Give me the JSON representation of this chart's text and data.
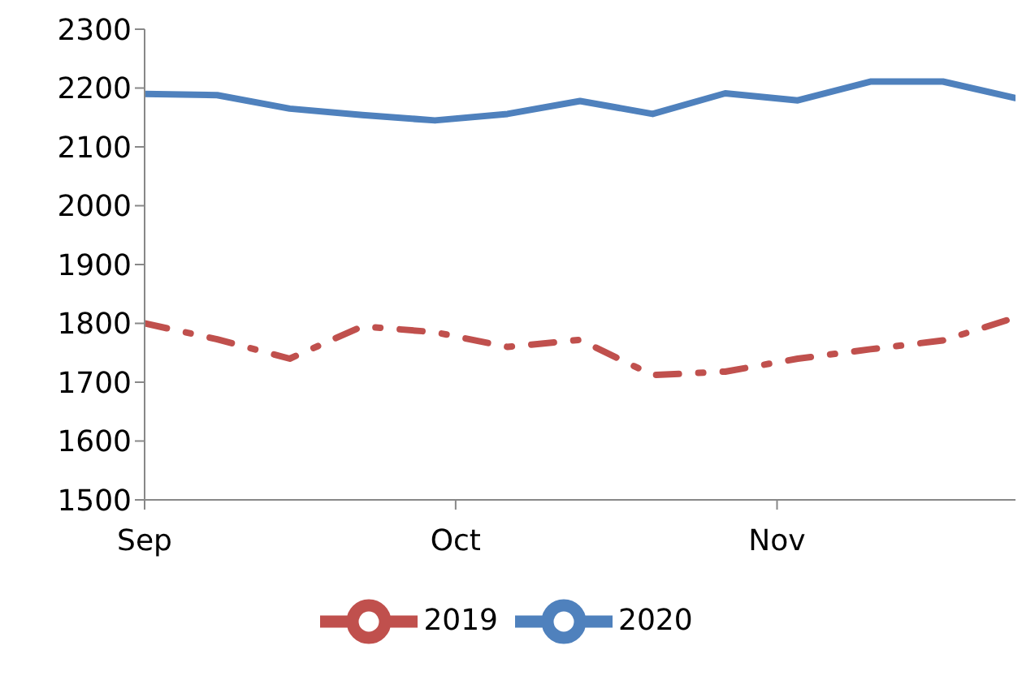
{
  "chart_data": {
    "type": "line",
    "x": [
      "--09-01",
      "--09-08",
      "--09-15",
      "--09-22",
      "--09-29",
      "--10-06",
      "--10-13",
      "--10-20",
      "--10-27",
      "--11-03",
      "--11-10",
      "--11-17",
      "--11-24"
    ],
    "series": [
      {
        "name": "2020",
        "color": "#4f81bd",
        "line_style": "solid",
        "values": [
          2190,
          2188,
          2165,
          2154,
          2145,
          2156,
          2178,
          2156,
          2191,
          2179,
          2211,
          2211,
          2183
        ]
      },
      {
        "name": "2019",
        "color": "#c0504d",
        "line_style": "dashed",
        "values": [
          1800,
          1773,
          1740,
          1795,
          1785,
          1760,
          1772,
          1712,
          1718,
          1740,
          1756,
          1771,
          1810
        ]
      }
    ],
    "xlim": [
      "--09-01",
      "--11-24"
    ],
    "xticks": [
      {
        "value": "--09-01",
        "label": "Sep"
      },
      {
        "value": "--10-01",
        "label": "Oct"
      },
      {
        "value": "--11-01",
        "label": "Nov"
      }
    ],
    "ylim": [
      1500,
      2300
    ],
    "yticks": [
      1500,
      1600,
      1700,
      1800,
      1900,
      2000,
      2100,
      2200,
      2300
    ],
    "grid": false,
    "legend": "bottom",
    "marker": "none"
  }
}
